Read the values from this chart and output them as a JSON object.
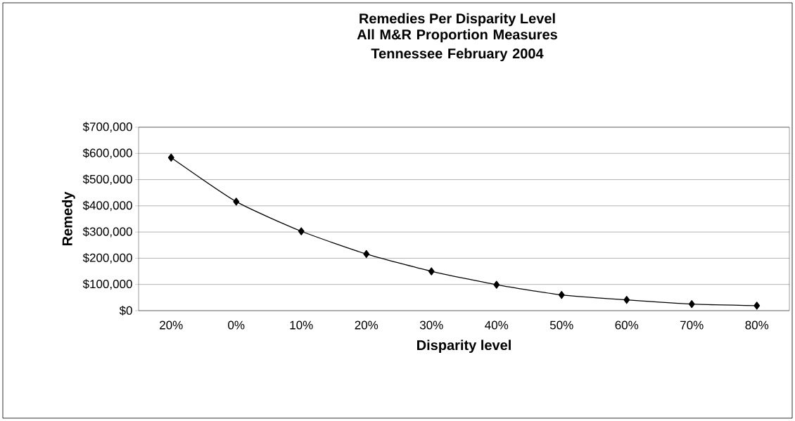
{
  "chart_data": {
    "type": "line",
    "title": "Remedies Per Disparity Level",
    "subtitle": "All M&R Proportion Measures Tennessee February 2004",
    "xlabel": "Disparity level",
    "ylabel": "Remedy",
    "categories": [
      "20%",
      "0%",
      "10%",
      "20%",
      "30%",
      "40%",
      "50%",
      "60%",
      "70%",
      "80%"
    ],
    "series": [
      {
        "color": "#000000",
        "values": [
          584000,
          416000,
          303000,
          216000,
          150000,
          99000,
          60000,
          41000,
          25000,
          19000
        ]
      }
    ],
    "ylim": [
      0,
      700000
    ],
    "yticks": [
      {
        "value": 0,
        "label": "$0"
      },
      {
        "value": 100000,
        "label": "$100,000"
      },
      {
        "value": 200000,
        "label": "$200,000"
      },
      {
        "value": 300000,
        "label": "$300,000"
      },
      {
        "value": 400000,
        "label": "$400,000"
      },
      {
        "value": 500000,
        "label": "$500,000"
      },
      {
        "value": 600000,
        "label": "$600,000"
      },
      {
        "value": 700000,
        "label": "$700,000"
      }
    ],
    "grid": "y",
    "marker": "diamond",
    "line_style": "solid"
  }
}
